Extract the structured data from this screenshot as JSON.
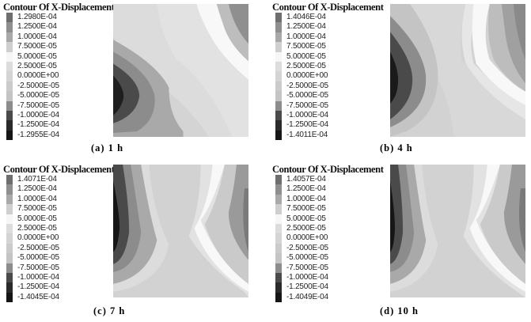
{
  "chart_data": [
    {
      "type": "heatmap",
      "subtype": "contour",
      "title": "Contour Of X-Displacement",
      "caption": "(a) 1 h",
      "legend": [
        "1.2980E-04",
        "1.2500E-04",
        "1.0000E-04",
        "7.5000E-05",
        "5.0000E-05",
        "2.5000E-05",
        "0.0000E+00",
        "-2.5000E-05",
        "-5.0000E-05",
        "-7.5000E-05",
        "-1.0000E-04",
        "-1.2500E-04",
        "-1.2955E-04"
      ],
      "range": [
        -0.00012955,
        0.0001298
      ]
    },
    {
      "type": "heatmap",
      "subtype": "contour",
      "title": "Contour Of X-Displacement",
      "caption": "(b) 4 h",
      "legend": [
        "1.4046E-04",
        "1.2500E-04",
        "1.0000E-04",
        "7.5000E-05",
        "5.0000E-05",
        "2.5000E-05",
        "0.0000E+00",
        "-2.5000E-05",
        "-5.0000E-05",
        "-7.5000E-05",
        "-1.0000E-04",
        "-1.2500E-04",
        "-1.4011E-04"
      ],
      "range": [
        -0.00014011,
        0.00014046
      ]
    },
    {
      "type": "heatmap",
      "subtype": "contour",
      "title": "Contour Of X-Displacement",
      "caption": "(c) 7 h",
      "legend": [
        "1.4071E-04",
        "1.2500E-04",
        "1.0000E-04",
        "7.5000E-05",
        "5.0000E-05",
        "2.5000E-05",
        "0.0000E+00",
        "-2.5000E-05",
        "-5.0000E-05",
        "-7.5000E-05",
        "-1.0000E-04",
        "-1.2500E-04",
        "-1.4045E-04"
      ],
      "range": [
        -0.00014045,
        0.00014071
      ]
    },
    {
      "type": "heatmap",
      "subtype": "contour",
      "title": "Contour Of X-Displacement",
      "caption": "(d) 10 h",
      "legend": [
        "1.4057E-04",
        "1.2500E-04",
        "1.0000E-04",
        "7.5000E-05",
        "5.0000E-05",
        "2.5000E-05",
        "0.0000E+00",
        "-2.5000E-05",
        "-5.0000E-05",
        "-7.5000E-05",
        "-1.0000E-04",
        "-1.2500E-04",
        "-1.4049E-04"
      ],
      "range": [
        -0.00014049,
        0.00014057
      ]
    }
  ],
  "legend_colors": [
    "#6e6e6e",
    "#8f8f8f",
    "#a9a9a9",
    "#cfcfcf",
    "#f6f6f6",
    "#dcdcdc",
    "#d4d4d4",
    "#cbcbcb",
    "#c4c4c4",
    "#8c8c8c",
    "#4a4a4a",
    "#2a2a2a",
    "#161616"
  ]
}
